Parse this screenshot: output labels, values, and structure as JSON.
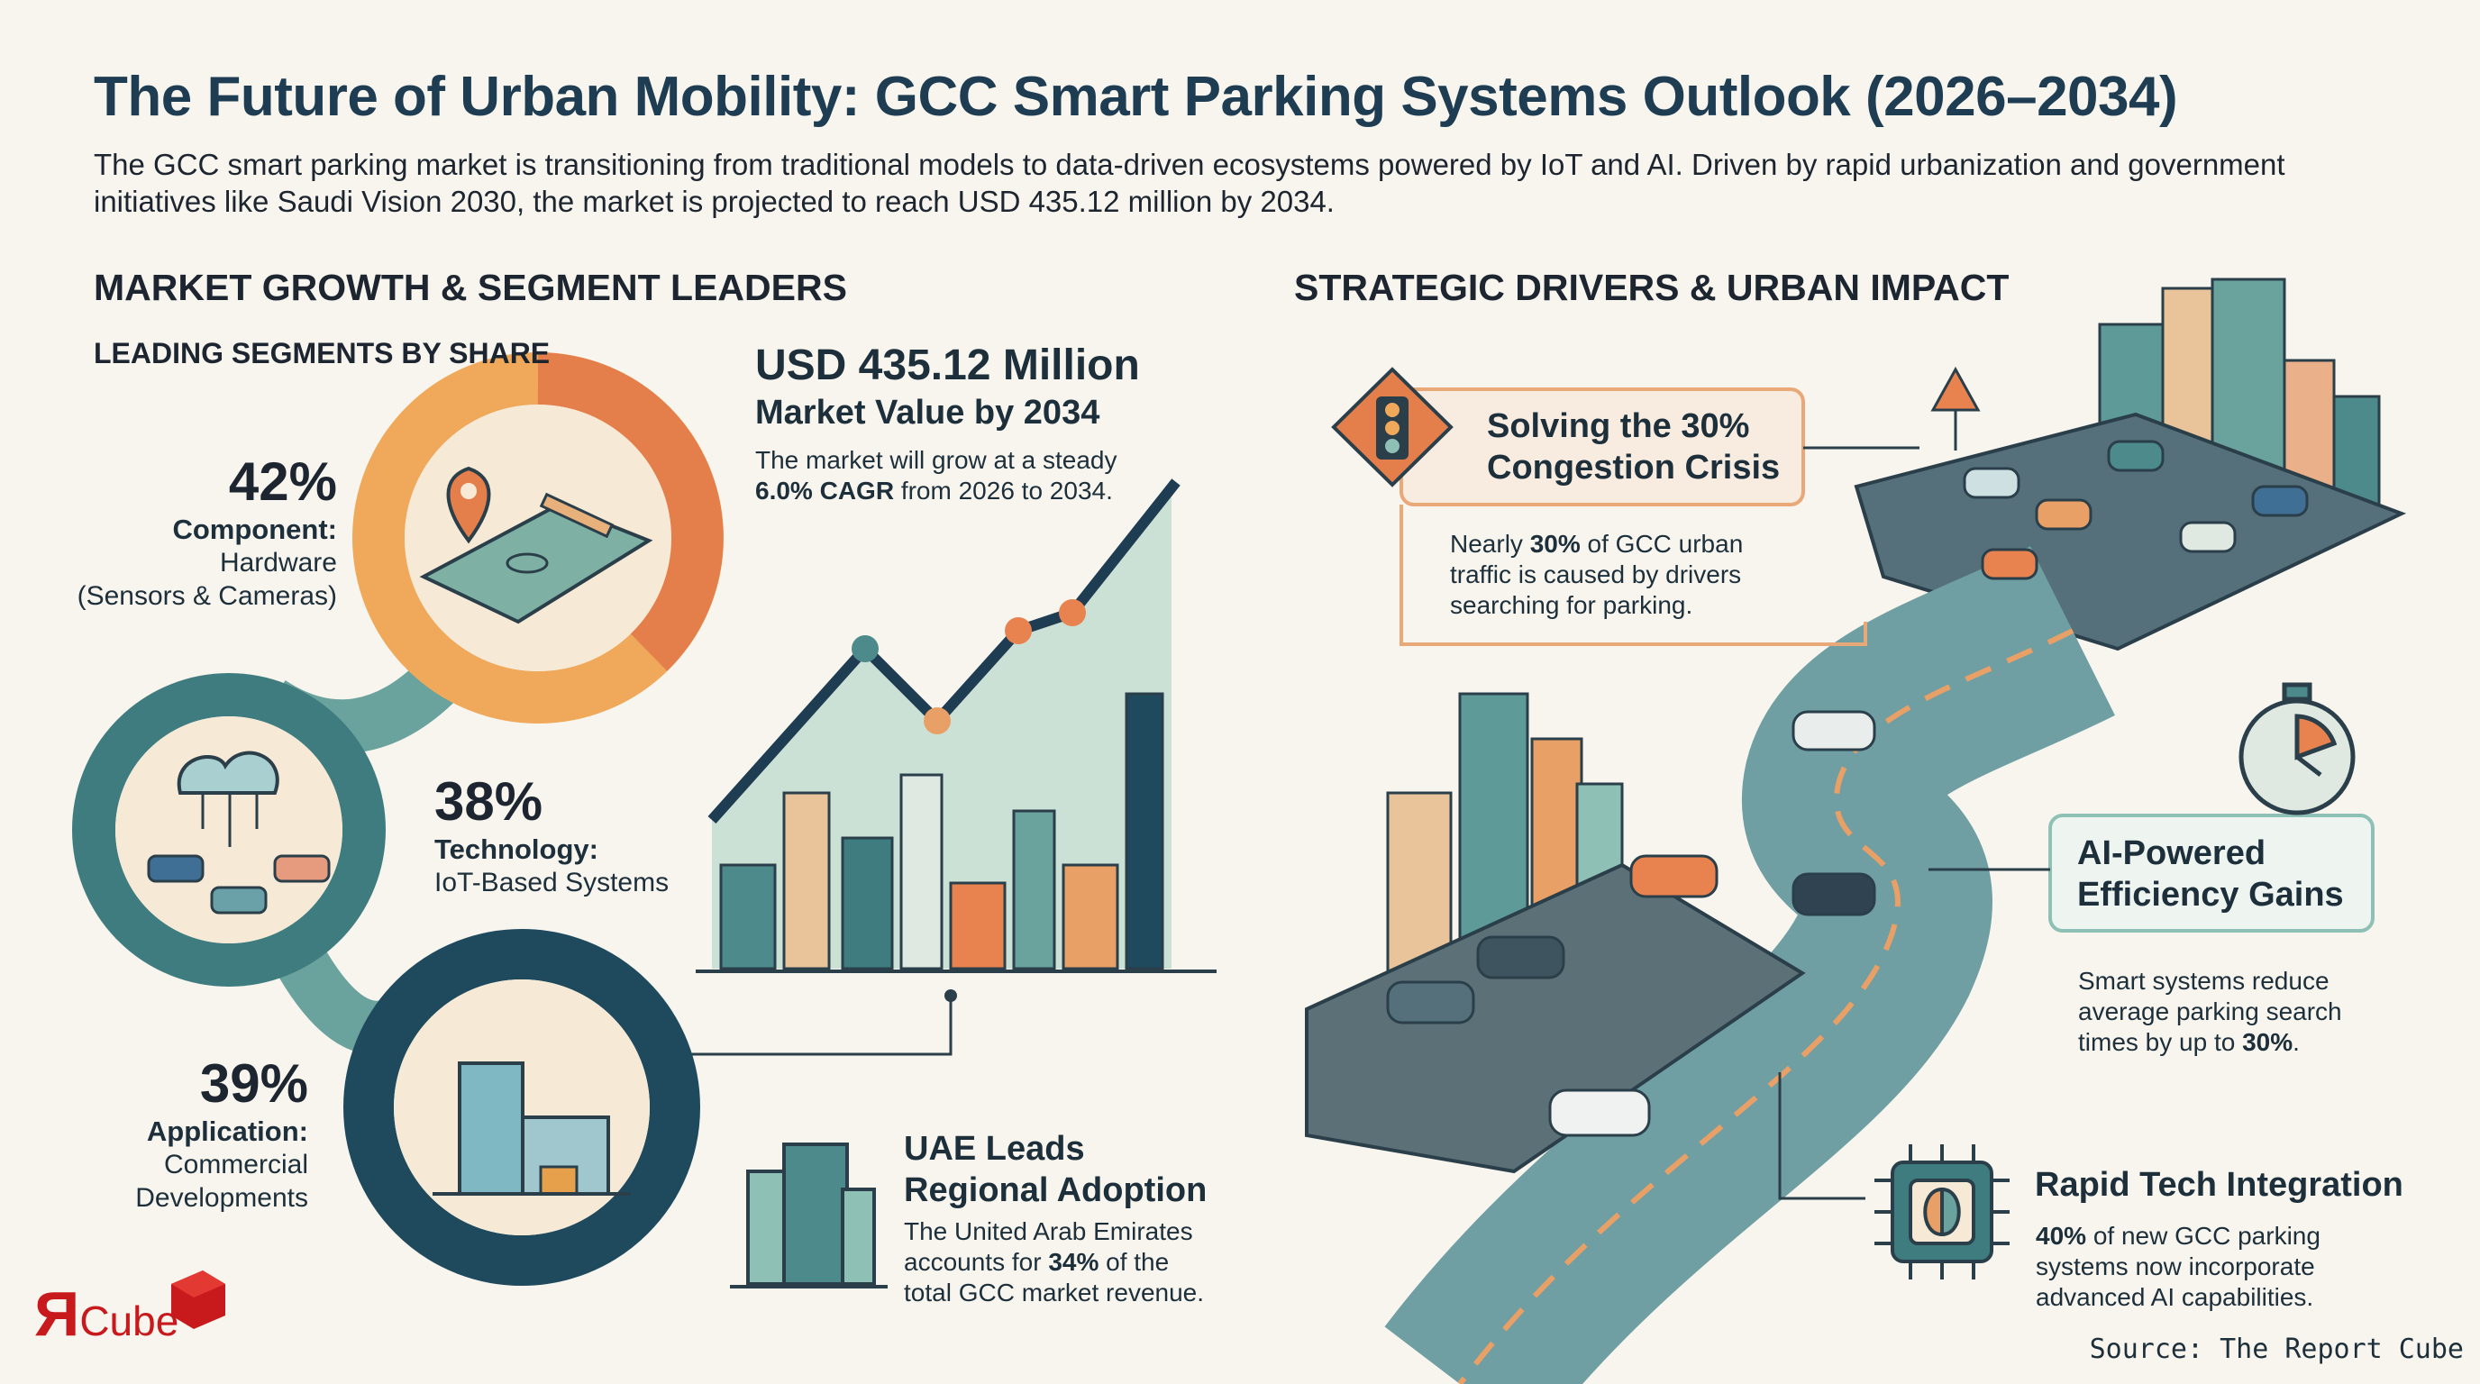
{
  "header": {
    "title": "The Future of Urban Mobility: GCC Smart Parking Systems Outlook (2026–2034)",
    "intro": "The GCC smart parking market is transitioning from traditional models to data-driven ecosystems powered by IoT and AI. Driven by rapid urbanization and government initiatives like Saudi Vision 2030, the market is projected to reach USD 435.12 million by 2034."
  },
  "left": {
    "heading": "MARKET GROWTH & SEGMENT LEADERS",
    "subheading": "LEADING SEGMENTS BY SHARE",
    "segments": [
      {
        "share": "42%",
        "label": "Component:",
        "detail": [
          "Hardware",
          "(Sensors & Cameras)"
        ]
      },
      {
        "share": "38%",
        "label": "Technology:",
        "detail": [
          "IoT-Based Systems"
        ]
      },
      {
        "share": "39%",
        "label": "Application:",
        "detail": [
          "Commercial",
          "Developments"
        ]
      }
    ],
    "market": {
      "value": "USD 435.12 Million",
      "caption": "Market Value by 2034",
      "description": [
        "The market will grow at a steady ",
        "6.0% CAGR",
        " from 2026 to 2034."
      ]
    },
    "uae": {
      "title": [
        "UAE Leads",
        "Regional Adoption"
      ],
      "description": [
        "The United Arab Emirates accounts for ",
        "34%",
        " of the total GCC market revenue."
      ]
    }
  },
  "right": {
    "heading": "STRATEGIC DRIVERS & URBAN IMPACT",
    "congestion": {
      "title": [
        "Solving the 30%",
        "Congestion Crisis"
      ],
      "description": [
        "Nearly ",
        "30%",
        " of GCC urban traffic is caused by drivers searching for parking."
      ]
    },
    "efficiency": {
      "title": [
        "AI-Powered",
        "Efficiency Gains"
      ],
      "description": [
        "Smart systems reduce average parking search times by up to ",
        "30%",
        "."
      ]
    },
    "integration": {
      "title": "Rapid Tech Integration",
      "description": [
        "40%",
        " of new GCC parking systems now incorporate advanced AI capabilities."
      ]
    }
  },
  "footer": {
    "logo": [
      "Я",
      "Cube"
    ],
    "source": "Source: The Report Cube"
  }
}
